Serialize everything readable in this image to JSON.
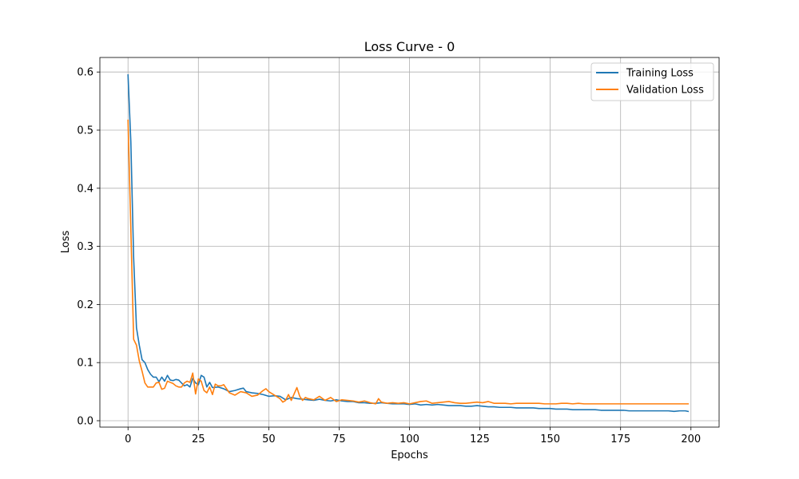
{
  "chart_data": {
    "type": "line",
    "title": "Loss Curve - 0",
    "xlabel": "Epochs",
    "ylabel": "Loss",
    "xlim": [
      -10,
      210
    ],
    "ylim": [
      -0.011,
      0.625
    ],
    "xticks": [
      0,
      25,
      50,
      75,
      100,
      125,
      150,
      175,
      200
    ],
    "yticks": [
      0.0,
      0.1,
      0.2,
      0.3,
      0.4,
      0.5,
      0.6
    ],
    "xtick_labels": [
      "0",
      "25",
      "50",
      "75",
      "100",
      "125",
      "150",
      "175",
      "200"
    ],
    "ytick_labels": [
      "0.0",
      "0.1",
      "0.2",
      "0.3",
      "0.4",
      "0.5",
      "0.6"
    ],
    "grid": true,
    "legend_position": "top-right",
    "series": [
      {
        "name": "Training Loss",
        "color": "#1f77b4",
        "points": [
          [
            0,
            0.595
          ],
          [
            1,
            0.48
          ],
          [
            2,
            0.28
          ],
          [
            3,
            0.16
          ],
          [
            4,
            0.13
          ],
          [
            5,
            0.105
          ],
          [
            6,
            0.1
          ],
          [
            7,
            0.088
          ],
          [
            8,
            0.08
          ],
          [
            9,
            0.075
          ],
          [
            10,
            0.075
          ],
          [
            11,
            0.067
          ],
          [
            12,
            0.075
          ],
          [
            13,
            0.068
          ],
          [
            14,
            0.078
          ],
          [
            15,
            0.07
          ],
          [
            16,
            0.069
          ],
          [
            17,
            0.071
          ],
          [
            18,
            0.07
          ],
          [
            19,
            0.065
          ],
          [
            20,
            0.06
          ],
          [
            21,
            0.062
          ],
          [
            22,
            0.058
          ],
          [
            23,
            0.073
          ],
          [
            24,
            0.065
          ],
          [
            25,
            0.062
          ],
          [
            26,
            0.078
          ],
          [
            27,
            0.075
          ],
          [
            28,
            0.058
          ],
          [
            29,
            0.066
          ],
          [
            30,
            0.057
          ],
          [
            32,
            0.058
          ],
          [
            34,
            0.055
          ],
          [
            36,
            0.05
          ],
          [
            38,
            0.052
          ],
          [
            40,
            0.055
          ],
          [
            41,
            0.056
          ],
          [
            42,
            0.05
          ],
          [
            44,
            0.048
          ],
          [
            46,
            0.047
          ],
          [
            48,
            0.045
          ],
          [
            50,
            0.042
          ],
          [
            52,
            0.043
          ],
          [
            54,
            0.042
          ],
          [
            56,
            0.036
          ],
          [
            58,
            0.04
          ],
          [
            60,
            0.038
          ],
          [
            62,
            0.037
          ],
          [
            64,
            0.036
          ],
          [
            66,
            0.035
          ],
          [
            68,
            0.037
          ],
          [
            70,
            0.035
          ],
          [
            72,
            0.034
          ],
          [
            74,
            0.036
          ],
          [
            76,
            0.034
          ],
          [
            78,
            0.033
          ],
          [
            80,
            0.033
          ],
          [
            82,
            0.031
          ],
          [
            84,
            0.031
          ],
          [
            86,
            0.03
          ],
          [
            88,
            0.03
          ],
          [
            90,
            0.031
          ],
          [
            92,
            0.03
          ],
          [
            94,
            0.029
          ],
          [
            96,
            0.029
          ],
          [
            98,
            0.029
          ],
          [
            100,
            0.028
          ],
          [
            102,
            0.029
          ],
          [
            104,
            0.027
          ],
          [
            106,
            0.028
          ],
          [
            108,
            0.027
          ],
          [
            110,
            0.028
          ],
          [
            112,
            0.027
          ],
          [
            114,
            0.026
          ],
          [
            116,
            0.026
          ],
          [
            118,
            0.026
          ],
          [
            120,
            0.025
          ],
          [
            122,
            0.025
          ],
          [
            124,
            0.026
          ],
          [
            126,
            0.025
          ],
          [
            128,
            0.024
          ],
          [
            130,
            0.024
          ],
          [
            132,
            0.023
          ],
          [
            134,
            0.023
          ],
          [
            136,
            0.023
          ],
          [
            138,
            0.022
          ],
          [
            140,
            0.022
          ],
          [
            142,
            0.022
          ],
          [
            144,
            0.022
          ],
          [
            146,
            0.021
          ],
          [
            148,
            0.021
          ],
          [
            150,
            0.021
          ],
          [
            152,
            0.02
          ],
          [
            154,
            0.02
          ],
          [
            156,
            0.02
          ],
          [
            158,
            0.019
          ],
          [
            160,
            0.019
          ],
          [
            162,
            0.019
          ],
          [
            164,
            0.019
          ],
          [
            166,
            0.019
          ],
          [
            168,
            0.018
          ],
          [
            170,
            0.018
          ],
          [
            172,
            0.018
          ],
          [
            174,
            0.018
          ],
          [
            176,
            0.018
          ],
          [
            178,
            0.017
          ],
          [
            180,
            0.017
          ],
          [
            182,
            0.017
          ],
          [
            184,
            0.017
          ],
          [
            186,
            0.017
          ],
          [
            188,
            0.017
          ],
          [
            190,
            0.017
          ],
          [
            192,
            0.017
          ],
          [
            194,
            0.016
          ],
          [
            196,
            0.017
          ],
          [
            198,
            0.017
          ],
          [
            199,
            0.016
          ]
        ]
      },
      {
        "name": "Validation Loss",
        "color": "#ff7f0e",
        "points": [
          [
            0,
            0.517
          ],
          [
            1,
            0.33
          ],
          [
            2,
            0.14
          ],
          [
            3,
            0.13
          ],
          [
            4,
            0.103
          ],
          [
            5,
            0.085
          ],
          [
            6,
            0.065
          ],
          [
            7,
            0.058
          ],
          [
            8,
            0.058
          ],
          [
            9,
            0.058
          ],
          [
            10,
            0.065
          ],
          [
            11,
            0.066
          ],
          [
            12,
            0.054
          ],
          [
            13,
            0.056
          ],
          [
            14,
            0.068
          ],
          [
            15,
            0.066
          ],
          [
            16,
            0.064
          ],
          [
            17,
            0.06
          ],
          [
            18,
            0.058
          ],
          [
            19,
            0.058
          ],
          [
            20,
            0.065
          ],
          [
            21,
            0.068
          ],
          [
            22,
            0.066
          ],
          [
            23,
            0.082
          ],
          [
            24,
            0.046
          ],
          [
            25,
            0.072
          ],
          [
            26,
            0.068
          ],
          [
            27,
            0.052
          ],
          [
            28,
            0.048
          ],
          [
            29,
            0.058
          ],
          [
            30,
            0.045
          ],
          [
            31,
            0.063
          ],
          [
            32,
            0.06
          ],
          [
            33,
            0.06
          ],
          [
            34,
            0.062
          ],
          [
            35,
            0.055
          ],
          [
            36,
            0.048
          ],
          [
            38,
            0.044
          ],
          [
            40,
            0.05
          ],
          [
            42,
            0.048
          ],
          [
            44,
            0.042
          ],
          [
            46,
            0.044
          ],
          [
            48,
            0.052
          ],
          [
            49,
            0.055
          ],
          [
            50,
            0.05
          ],
          [
            52,
            0.044
          ],
          [
            54,
            0.038
          ],
          [
            55,
            0.032
          ],
          [
            56,
            0.035
          ],
          [
            57,
            0.045
          ],
          [
            58,
            0.035
          ],
          [
            60,
            0.057
          ],
          [
            61,
            0.042
          ],
          [
            62,
            0.035
          ],
          [
            63,
            0.04
          ],
          [
            64,
            0.038
          ],
          [
            66,
            0.036
          ],
          [
            68,
            0.042
          ],
          [
            70,
            0.035
          ],
          [
            72,
            0.04
          ],
          [
            74,
            0.033
          ],
          [
            76,
            0.036
          ],
          [
            78,
            0.035
          ],
          [
            80,
            0.034
          ],
          [
            82,
            0.032
          ],
          [
            84,
            0.034
          ],
          [
            86,
            0.031
          ],
          [
            88,
            0.029
          ],
          [
            89,
            0.038
          ],
          [
            90,
            0.032
          ],
          [
            92,
            0.03
          ],
          [
            94,
            0.031
          ],
          [
            96,
            0.03
          ],
          [
            98,
            0.031
          ],
          [
            100,
            0.029
          ],
          [
            102,
            0.031
          ],
          [
            104,
            0.033
          ],
          [
            106,
            0.034
          ],
          [
            108,
            0.03
          ],
          [
            110,
            0.031
          ],
          [
            112,
            0.032
          ],
          [
            114,
            0.033
          ],
          [
            116,
            0.031
          ],
          [
            118,
            0.03
          ],
          [
            120,
            0.03
          ],
          [
            122,
            0.031
          ],
          [
            124,
            0.032
          ],
          [
            126,
            0.031
          ],
          [
            128,
            0.033
          ],
          [
            130,
            0.03
          ],
          [
            132,
            0.03
          ],
          [
            134,
            0.03
          ],
          [
            136,
            0.029
          ],
          [
            138,
            0.03
          ],
          [
            140,
            0.03
          ],
          [
            142,
            0.03
          ],
          [
            144,
            0.03
          ],
          [
            146,
            0.03
          ],
          [
            148,
            0.029
          ],
          [
            150,
            0.029
          ],
          [
            152,
            0.029
          ],
          [
            154,
            0.03
          ],
          [
            156,
            0.03
          ],
          [
            158,
            0.029
          ],
          [
            160,
            0.03
          ],
          [
            162,
            0.029
          ],
          [
            164,
            0.029
          ],
          [
            166,
            0.029
          ],
          [
            168,
            0.029
          ],
          [
            170,
            0.029
          ],
          [
            172,
            0.029
          ],
          [
            174,
            0.029
          ],
          [
            176,
            0.029
          ],
          [
            178,
            0.029
          ],
          [
            180,
            0.029
          ],
          [
            182,
            0.029
          ],
          [
            184,
            0.029
          ],
          [
            186,
            0.029
          ],
          [
            188,
            0.029
          ],
          [
            190,
            0.029
          ],
          [
            192,
            0.029
          ],
          [
            194,
            0.029
          ],
          [
            196,
            0.029
          ],
          [
            198,
            0.029
          ],
          [
            199,
            0.029
          ]
        ]
      }
    ]
  }
}
